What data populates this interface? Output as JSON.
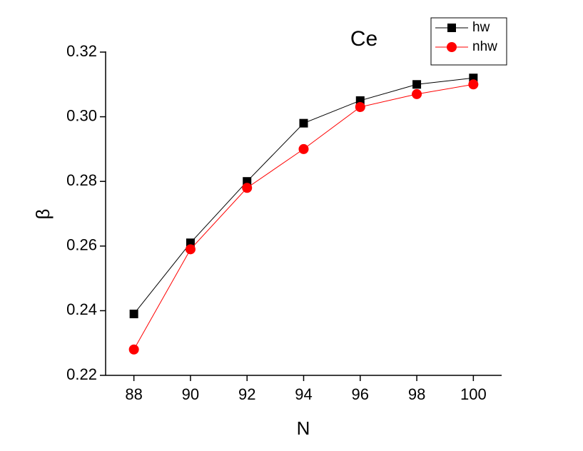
{
  "chart_data": {
    "type": "line",
    "annotation": "Ce",
    "x_label": "N",
    "y_label": "β",
    "x": [
      88,
      90,
      92,
      94,
      96,
      98,
      100
    ],
    "series": [
      {
        "name": "hw",
        "color": "#000000",
        "marker": "square",
        "values": [
          0.239,
          0.261,
          0.28,
          0.298,
          0.305,
          0.31,
          0.312
        ]
      },
      {
        "name": "nhw",
        "color": "#ff0000",
        "marker": "circle",
        "values": [
          0.228,
          0.259,
          0.278,
          0.29,
          0.303,
          0.307,
          0.31
        ]
      }
    ],
    "xlim": [
      87,
      101
    ],
    "xticks": [
      88,
      90,
      92,
      94,
      96,
      98,
      100
    ],
    "ylim": [
      0.22,
      0.32
    ],
    "yticks": [
      {
        "value": 0.22,
        "label": "0.22"
      },
      {
        "value": 0.24,
        "label": "0.24"
      },
      {
        "value": 0.26,
        "label": "0.26"
      },
      {
        "value": 0.28,
        "label": "0.28"
      },
      {
        "value": 0.3,
        "label": "0.30"
      },
      {
        "value": 0.32,
        "label": "0.32"
      }
    ],
    "legend": "top-right"
  }
}
